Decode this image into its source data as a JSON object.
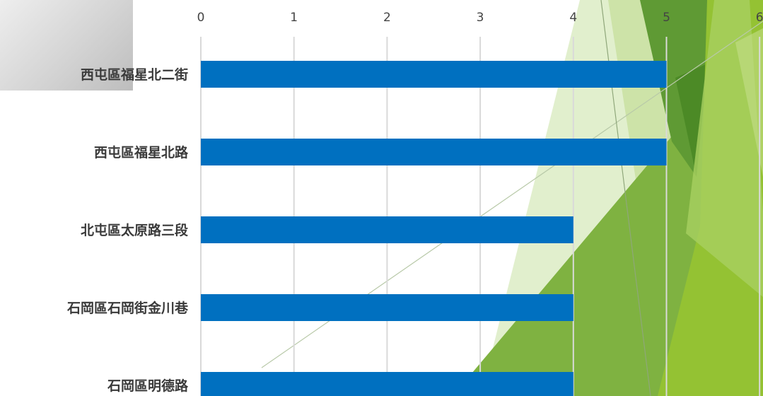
{
  "chart_data": {
    "type": "bar",
    "orientation": "horizontal",
    "title": "",
    "xlabel": "",
    "ylabel": "",
    "categories": [
      "西屯區福星北二街",
      "西屯區福星北路",
      "北屯區太原路三段",
      "石岡區石岡街金川巷",
      "石岡區明德路"
    ],
    "values": [
      5,
      5,
      4,
      4,
      4
    ],
    "xlim": [
      0,
      6
    ],
    "x_ticks": [
      "0",
      "1",
      "2",
      "3",
      "4",
      "5",
      "6"
    ],
    "grid": true,
    "legend": "none",
    "bar_color": "#0070C0",
    "grid_color": "#d9d9d9"
  },
  "theme": {
    "background": "#ffffff",
    "accent_green_light": "#d9eac0",
    "accent_green_mid": "#7fb241",
    "accent_green_dark": "#5b9a33",
    "accent_lime": "#94c233"
  }
}
